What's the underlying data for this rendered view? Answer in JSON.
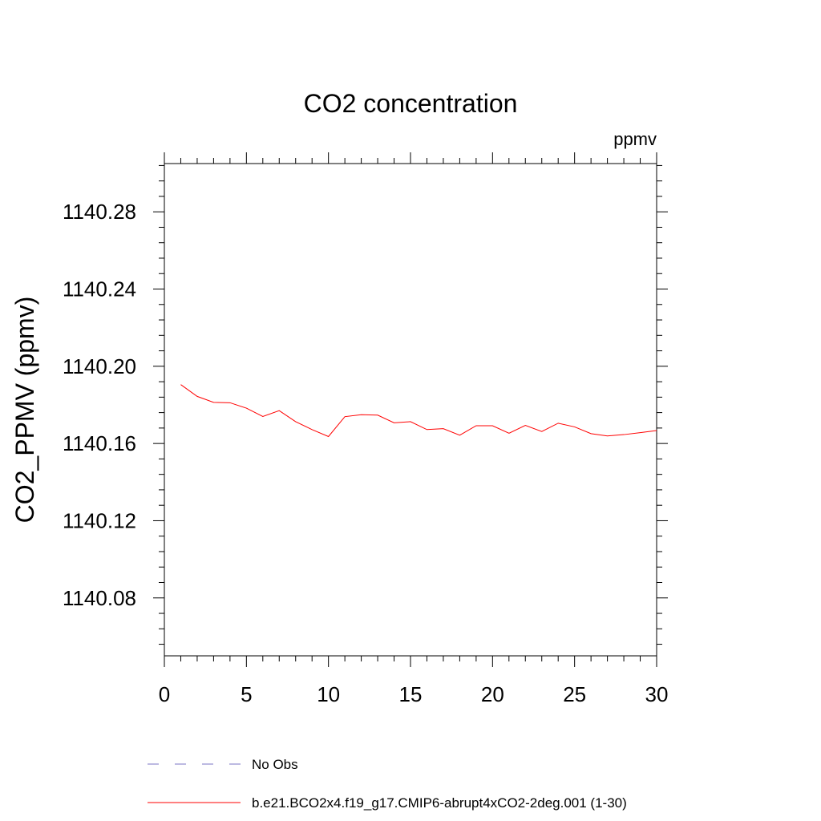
{
  "chart_data": {
    "type": "line",
    "title": "CO2 concentration",
    "units_label": "ppmv",
    "ylabel": "CO2_PPMV  (ppmv)",
    "xlabel": "",
    "xlim": [
      0,
      30
    ],
    "ylim": [
      1140.05,
      1140.305
    ],
    "x_ticks": [
      0,
      5,
      10,
      15,
      20,
      25,
      30
    ],
    "x_tick_labels": [
      "0",
      "5",
      "10",
      "15",
      "20",
      "25",
      "30"
    ],
    "y_ticks": [
      1140.08,
      1140.12,
      1140.16,
      1140.2,
      1140.24,
      1140.28
    ],
    "y_tick_labels": [
      "1140.08",
      "1140.12",
      "1140.16",
      "1140.20",
      "1140.24",
      "1140.28"
    ],
    "y_minor_step": 0.008,
    "x_minor_step": 1,
    "grid": false,
    "legend_position": "bottom-left",
    "series": [
      {
        "name": "No Obs",
        "color": "#7b74c4",
        "dash": "dashed",
        "x": [],
        "y": []
      },
      {
        "name": "b.e21.BCO2x4.f19_g17.CMIP6-abrupt4xCO2-2deg.001 (1-30)",
        "color": "#ff0000",
        "dash": "solid",
        "x": [
          1,
          2,
          3,
          4,
          5,
          6,
          7,
          8,
          9,
          10,
          11,
          12,
          13,
          14,
          15,
          16,
          17,
          18,
          19,
          20,
          21,
          22,
          23,
          24,
          25,
          26,
          27,
          28,
          29,
          30
        ],
        "y": [
          1140.1905,
          1140.1844,
          1140.1813,
          1140.1811,
          1140.1783,
          1140.174,
          1140.177,
          1140.1713,
          1140.1672,
          1140.1636,
          1140.1739,
          1140.1749,
          1140.1747,
          1140.1707,
          1140.1713,
          1140.1672,
          1140.1677,
          1140.1643,
          1140.1692,
          1140.1692,
          1140.1653,
          1140.1694,
          1140.1662,
          1140.1705,
          1140.1686,
          1140.1651,
          1140.1639,
          1140.1646,
          1140.1656,
          1140.1667
        ]
      }
    ]
  }
}
